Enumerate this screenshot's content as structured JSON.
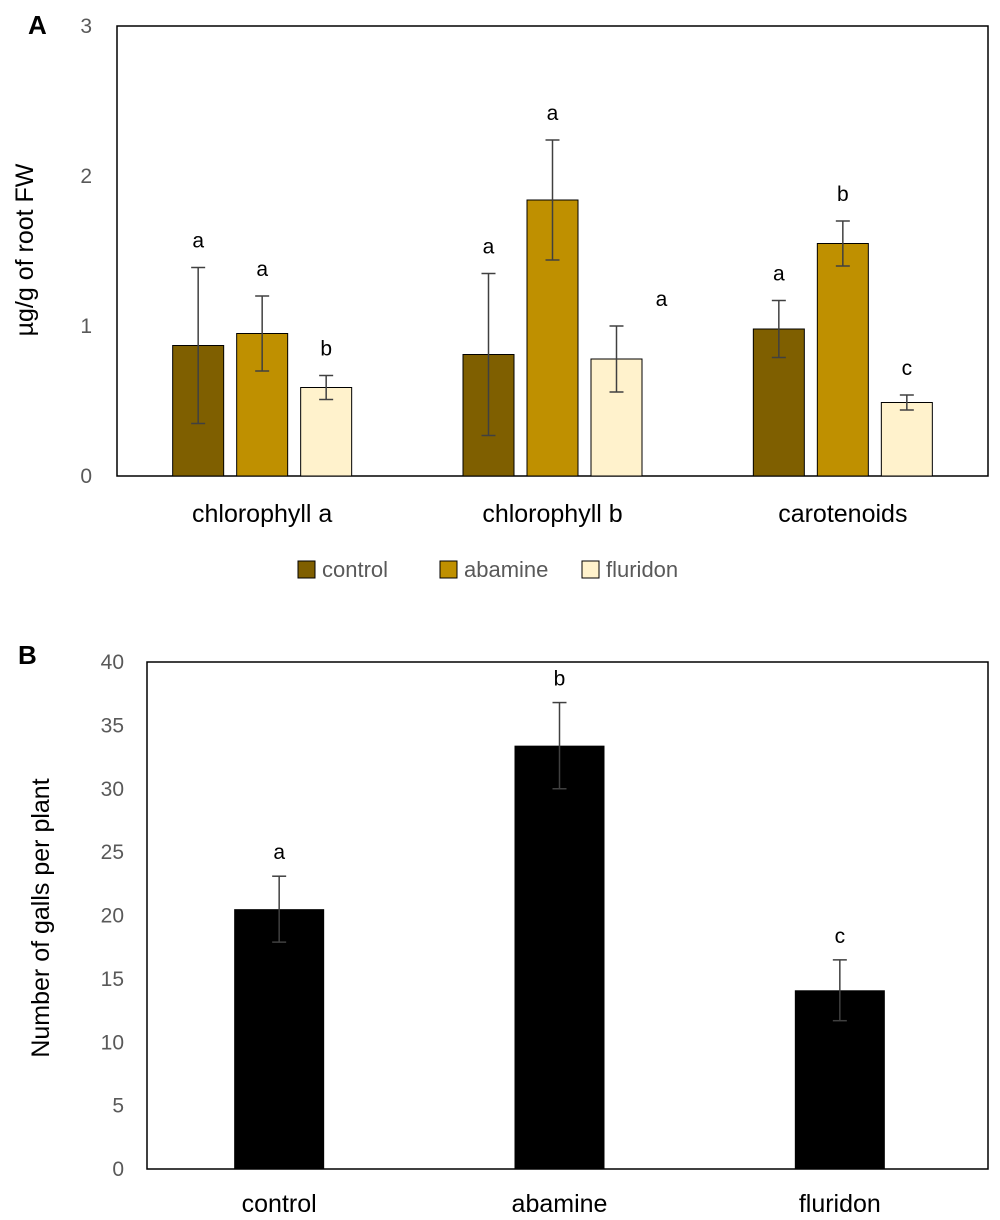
{
  "chart_data": [
    {
      "panel": "A",
      "type": "bar",
      "categories": [
        "chlorophyll a",
        "chlorophyll b",
        "carotenoids"
      ],
      "ylabel": "µg/g of root FW",
      "xlabel": "",
      "ylim": [
        0,
        3
      ],
      "yticks": [
        0,
        1,
        2,
        3
      ],
      "grid": false,
      "legend": "bottom",
      "series": [
        {
          "name": "control",
          "color": "#7f5f00",
          "values": [
            0.87,
            0.81,
            0.98
          ],
          "errors": [
            0.52,
            0.54,
            0.19
          ],
          "letters": [
            "a",
            "a",
            "a"
          ]
        },
        {
          "name": "abamine",
          "color": "#bf9000",
          "values": [
            0.95,
            1.84,
            1.55
          ],
          "errors": [
            0.25,
            0.4,
            0.15
          ],
          "letters": [
            "a",
            "a",
            "b"
          ]
        },
        {
          "name": "fluridon",
          "color": "#fff2cc",
          "values": [
            0.59,
            0.78,
            0.49
          ],
          "errors": [
            0.08,
            0.22,
            0.05
          ],
          "letters": [
            "b",
            "a",
            "c"
          ]
        }
      ]
    },
    {
      "panel": "B",
      "type": "bar",
      "categories": [
        "control",
        "abamine",
        "fluridon"
      ],
      "ylabel": "Number of galls per plant",
      "xlabel": "",
      "ylim": [
        0,
        40
      ],
      "yticks": [
        0,
        5,
        10,
        15,
        20,
        25,
        30,
        35,
        40
      ],
      "grid": false,
      "legend": "none",
      "series": [
        {
          "name": "galls",
          "color": "#000000",
          "values": [
            20.5,
            33.4,
            14.1
          ],
          "errors": [
            2.6,
            3.4,
            2.4
          ],
          "letters": [
            "a",
            "b",
            "c"
          ]
        }
      ]
    }
  ]
}
